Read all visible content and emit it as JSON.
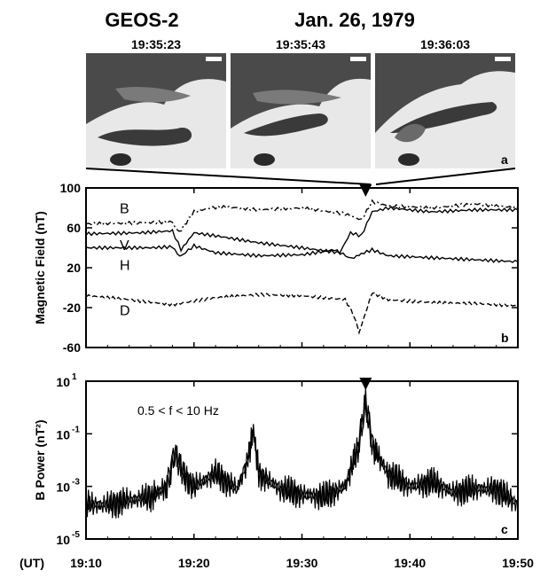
{
  "title": {
    "left": "GEOS-2",
    "right": "Jan. 26, 1979"
  },
  "aurora_frames": {
    "times": [
      "19:35:23",
      "19:35:43",
      "19:36:03"
    ],
    "panel_label": "a"
  },
  "time_axis": {
    "unit_label": "(UT)",
    "ticks": [
      "19:10",
      "19:20",
      "19:30",
      "19:40",
      "19:50"
    ],
    "range_minutes": [
      0,
      40
    ],
    "tick_minutes": [
      0,
      10,
      20,
      30,
      40
    ]
  },
  "chart_data": [
    {
      "type": "line",
      "panel": "b",
      "ylabel": "Magnetic Field (nT)",
      "ylim": [
        -60,
        100
      ],
      "yticks": [
        "100",
        "60",
        "20",
        "-20",
        "-60"
      ],
      "ytick_values": [
        100,
        60,
        20,
        -20,
        -60
      ],
      "marker_minute": 25.9,
      "series": [
        {
          "name": "B",
          "style": "dashdot",
          "x": [
            0,
            5,
            8,
            8.6,
            10,
            11.5,
            13,
            16,
            20,
            24,
            25.5,
            26.5,
            28,
            32,
            36,
            40
          ],
          "y": [
            64,
            65,
            66,
            55,
            76,
            80,
            81,
            78,
            80,
            74,
            68,
            86,
            82,
            80,
            84,
            80
          ]
        },
        {
          "name": "V",
          "style": "solid",
          "x": [
            0,
            5,
            8,
            8.8,
            10,
            12,
            16,
            20,
            23.5,
            24.5,
            25.5,
            26.5,
            28,
            32,
            36,
            40
          ],
          "y": [
            54,
            55,
            57,
            38,
            55,
            52,
            45,
            40,
            35,
            55,
            52,
            76,
            80,
            76,
            78,
            78
          ]
        },
        {
          "name": "H",
          "style": "solid",
          "x": [
            0,
            6,
            8,
            8.7,
            10,
            12,
            16,
            20,
            23,
            24.6,
            25.5,
            26.5,
            28,
            32,
            36,
            40
          ],
          "y": [
            40,
            40,
            41,
            31,
            42,
            35,
            32,
            33,
            38,
            29,
            34,
            38,
            32,
            30,
            28,
            26
          ]
        },
        {
          "name": "D",
          "style": "dashed",
          "x": [
            0,
            4,
            8,
            12,
            16,
            20,
            24,
            24.7,
            25.3,
            26.5,
            28,
            32,
            36,
            40
          ],
          "y": [
            -8,
            -12,
            -17,
            -10,
            -7,
            -8,
            -12,
            -25,
            -45,
            -5,
            -12,
            -15,
            -16,
            -18
          ]
        }
      ],
      "panel_label": "b"
    },
    {
      "type": "line",
      "panel": "c",
      "ylabel": "B Power (nT²)",
      "yscale": "log",
      "ylim": [
        1e-05,
        10
      ],
      "yticks": [
        {
          "base": "10",
          "exp": "1",
          "value": 10
        },
        {
          "base": "10",
          "exp": "-1",
          "value": 0.1
        },
        {
          "base": "10",
          "exp": "-3",
          "value": 0.001
        },
        {
          "base": "10",
          "exp": "-5",
          "value": 1e-05
        }
      ],
      "annotation": "0.5 < f < 10 Hz",
      "marker_minute": 25.9,
      "series": [
        {
          "x": [
            0,
            2,
            4,
            6,
            7.5,
            8.2,
            9,
            10,
            12,
            14,
            15,
            15.5,
            16,
            18,
            20,
            22,
            24,
            25.2,
            25.9,
            26.6,
            28,
            30,
            32,
            34,
            36,
            38,
            40
          ],
          "y": [
            0.0002,
            0.0002,
            0.0003,
            0.0004,
            0.001,
            0.02,
            0.003,
            0.001,
            0.003,
            0.0008,
            0.01,
            0.15,
            0.003,
            0.0008,
            0.0005,
            0.0004,
            0.001,
            0.03,
            1.5,
            0.03,
            0.003,
            0.001,
            0.0015,
            0.0006,
            0.0008,
            0.0008,
            0.0002
          ]
        }
      ],
      "panel_label": "c"
    }
  ]
}
